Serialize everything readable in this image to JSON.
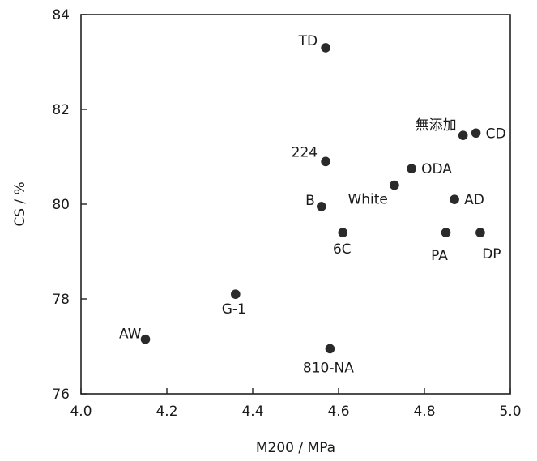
{
  "chart_data": {
    "type": "scatter",
    "title": "",
    "xlabel": "M200 / MPa",
    "ylabel": "CS / %",
    "xlim": [
      4.0,
      5.0
    ],
    "ylim": [
      76,
      84
    ],
    "x_ticks": [
      4.0,
      4.2,
      4.4,
      4.6,
      4.8,
      5.0
    ],
    "x_tick_labels": [
      "4.0",
      "4.2",
      "4.4",
      "4.6",
      "4.8",
      "5.0"
    ],
    "y_ticks": [
      76,
      78,
      80,
      82,
      84
    ],
    "y_tick_labels": [
      "76",
      "78",
      "80",
      "82",
      "84"
    ],
    "grid": false,
    "legend": false,
    "marker_color": "#2a2a2a",
    "points": [
      {
        "label": "TD",
        "x": 4.57,
        "y": 83.3
      },
      {
        "label": "無添加",
        "x": 4.89,
        "y": 81.45
      },
      {
        "label": "CD",
        "x": 4.92,
        "y": 81.5
      },
      {
        "label": "224",
        "x": 4.57,
        "y": 80.9
      },
      {
        "label": "ODA",
        "x": 4.77,
        "y": 80.75
      },
      {
        "label": "White",
        "x": 4.73,
        "y": 80.4
      },
      {
        "label": "AD",
        "x": 4.87,
        "y": 80.1
      },
      {
        "label": "B",
        "x": 4.56,
        "y": 79.95
      },
      {
        "label": "6C",
        "x": 4.61,
        "y": 79.4
      },
      {
        "label": "PA",
        "x": 4.85,
        "y": 79.4
      },
      {
        "label": "DP",
        "x": 4.93,
        "y": 79.4
      },
      {
        "label": "G-1",
        "x": 4.36,
        "y": 78.1
      },
      {
        "label": "AW",
        "x": 4.15,
        "y": 77.15
      },
      {
        "label": "810-NA",
        "x": 4.58,
        "y": 76.95
      }
    ]
  }
}
